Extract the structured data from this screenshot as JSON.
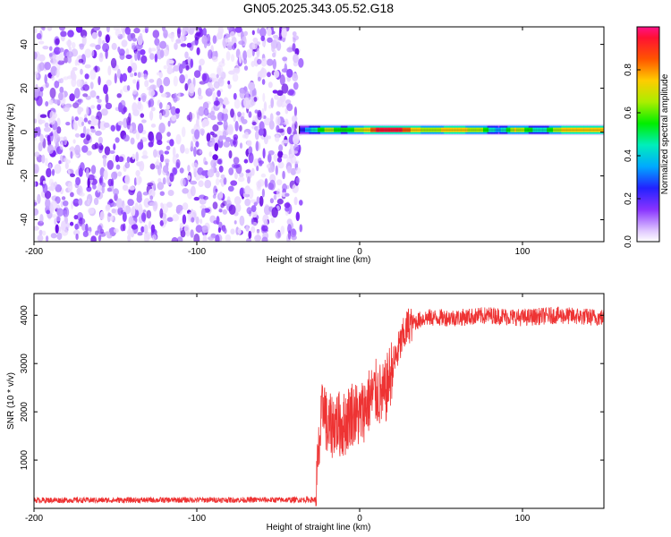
{
  "title": "GN05.2025.343.05.52.G18",
  "chart_data": [
    {
      "type": "heatmap",
      "xlabel": "Height of straight line (km)",
      "ylabel": "Frequency (Hz)",
      "xlim": [
        -200,
        150
      ],
      "ylim": [
        -50,
        48
      ],
      "x_ticks": [
        -200,
        -100,
        0,
        100
      ],
      "x_tick_labels": [
        "-200",
        "-100",
        "0",
        "100"
      ],
      "y_ticks": [
        -40,
        -20,
        0,
        20,
        40
      ],
      "y_tick_labels": [
        "-40",
        "-20",
        "0",
        "20",
        "40"
      ],
      "noise_region_x": [
        -200,
        -36
      ],
      "signal_line": {
        "x_start": -37,
        "frequency": 1,
        "amplitude_profile": [
          {
            "x": -37,
            "amplitude": 0.25
          },
          {
            "x": -30,
            "amplitude": 0.45
          },
          {
            "x": -20,
            "amplitude": 0.7
          },
          {
            "x": -10,
            "amplitude": 0.55
          },
          {
            "x": 0,
            "amplitude": 0.7
          },
          {
            "x": 10,
            "amplitude": 0.95
          },
          {
            "x": 25,
            "amplitude": 0.95
          },
          {
            "x": 40,
            "amplitude": 0.7
          },
          {
            "x": 60,
            "amplitude": 0.8
          },
          {
            "x": 75,
            "amplitude": 0.65
          },
          {
            "x": 85,
            "amplitude": 0.4
          },
          {
            "x": 95,
            "amplitude": 0.75
          },
          {
            "x": 110,
            "amplitude": 0.45
          },
          {
            "x": 125,
            "amplitude": 0.8
          },
          {
            "x": 150,
            "amplitude": 0.8
          }
        ]
      },
      "colorbar": {
        "label": "Normalized spectral amplitude",
        "range": [
          0,
          1
        ],
        "ticks": [
          0.0,
          0.2,
          0.4,
          0.6,
          0.8
        ],
        "tick_labels": [
          "0.0",
          "0.2",
          "0.4",
          "0.6",
          "0.8"
        ]
      },
      "grid": false
    },
    {
      "type": "line",
      "xlabel": "Height of straight line (km)",
      "ylabel": "SNR (10 * v/v)",
      "xlim": [
        -200,
        150
      ],
      "ylim": [
        0,
        4450
      ],
      "x_ticks": [
        -200,
        -100,
        0,
        100
      ],
      "x_tick_labels": [
        "-200",
        "-100",
        "0",
        "100"
      ],
      "y_ticks": [
        1000,
        2000,
        3000,
        4000
      ],
      "y_tick_labels": [
        "1000",
        "2000",
        "3000",
        "4000"
      ],
      "line_color": "#ee3333",
      "series": [
        {
          "x": [
            -200,
            -150,
            -100,
            -50,
            -27,
            -25,
            -22,
            -20,
            -15,
            -10,
            -5,
            0,
            5,
            10,
            15,
            20,
            25,
            30,
            40,
            60,
            80,
            100,
            120,
            150
          ],
          "y": [
            170,
            170,
            175,
            175,
            180,
            1200,
            2300,
            1600,
            1800,
            1700,
            2000,
            1900,
            2200,
            2400,
            2300,
            2900,
            3400,
            3800,
            3950,
            3950,
            4000,
            3950,
            4000,
            3950
          ]
        }
      ],
      "grid": false
    }
  ]
}
